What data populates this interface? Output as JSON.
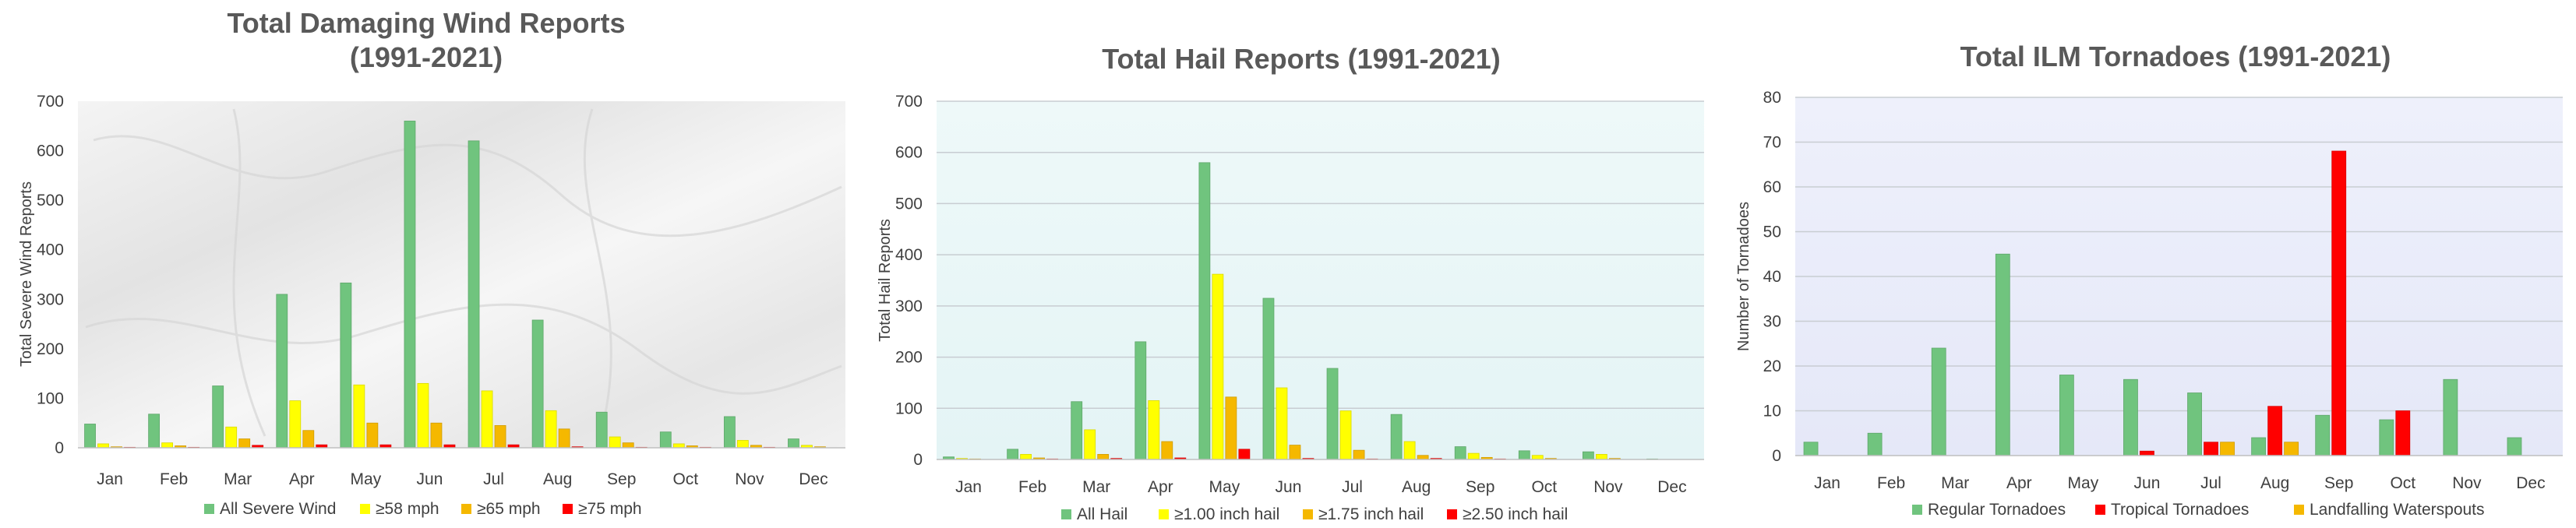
{
  "chart_data": [
    {
      "type": "bar",
      "title": "Total Damaging Wind Reports",
      "subtitle": "(1991-2021)",
      "xlabel": "",
      "ylabel": "Total Severe Wind Reports",
      "ylim": [
        0,
        700
      ],
      "yticks": [
        0,
        100,
        200,
        300,
        400,
        500,
        600,
        700
      ],
      "categories": [
        "Jan",
        "Feb",
        "Mar",
        "Apr",
        "May",
        "Jun",
        "Jul",
        "Aug",
        "Sep",
        "Oct",
        "Nov",
        "Dec"
      ],
      "grid": false,
      "legend_position": "bottom",
      "plot_background": "marble-gray",
      "series": [
        {
          "name": "All Severe Wind",
          "color": "#70c47e",
          "values": [
            48,
            68,
            125,
            310,
            333,
            660,
            620,
            258,
            72,
            32,
            63,
            18
          ]
        },
        {
          "name": "≥58 mph",
          "color": "#ffff00",
          "values": [
            8,
            10,
            42,
            95,
            127,
            130,
            115,
            75,
            22,
            8,
            15,
            5
          ]
        },
        {
          "name": "≥65 mph",
          "color": "#f5b800",
          "values": [
            2,
            4,
            18,
            35,
            50,
            50,
            45,
            38,
            10,
            4,
            5,
            2
          ]
        },
        {
          "name": "≥75 mph",
          "color": "#ff0000",
          "values": [
            1,
            1,
            5,
            6,
            6,
            6,
            6,
            2,
            1,
            1,
            1,
            0
          ]
        }
      ]
    },
    {
      "type": "bar",
      "title": "Total Hail Reports (1991-2021)",
      "xlabel": "",
      "ylabel": "Total Hail Reports",
      "ylim": [
        0,
        700
      ],
      "yticks": [
        0,
        100,
        200,
        300,
        400,
        500,
        600,
        700
      ],
      "categories": [
        "Jan",
        "Feb",
        "Mar",
        "Apr",
        "May",
        "Jun",
        "Jul",
        "Aug",
        "Sep",
        "Oct",
        "Nov",
        "Dec"
      ],
      "grid": true,
      "legend_position": "bottom",
      "plot_background": "pale-aqua",
      "series": [
        {
          "name": "All Hail",
          "color": "#70c47e",
          "values": [
            5,
            20,
            113,
            230,
            580,
            315,
            178,
            88,
            25,
            17,
            15,
            1
          ]
        },
        {
          "name": "≥1.00 inch hail",
          "color": "#ffff00",
          "values": [
            2,
            10,
            58,
            115,
            362,
            140,
            95,
            35,
            12,
            8,
            10,
            0
          ]
        },
        {
          "name": "≥1.75 inch hail",
          "color": "#f5b800",
          "values": [
            1,
            3,
            10,
            35,
            122,
            28,
            18,
            8,
            4,
            2,
            2,
            0
          ]
        },
        {
          "name": "≥2.50 inch hail",
          "color": "#ff0000",
          "values": [
            0,
            1,
            2,
            3,
            20,
            2,
            1,
            2,
            1,
            0,
            0,
            0
          ]
        }
      ]
    },
    {
      "type": "bar",
      "title": "Total ILM Tornadoes (1991-2021)",
      "xlabel": "",
      "ylabel": "Number of Tornadoes",
      "ylim": [
        0,
        80
      ],
      "yticks": [
        0,
        10,
        20,
        30,
        40,
        50,
        60,
        70,
        80
      ],
      "categories": [
        "Jan",
        "Feb",
        "Mar",
        "Apr",
        "May",
        "Jun",
        "Jul",
        "Aug",
        "Sep",
        "Oct",
        "Nov",
        "Dec"
      ],
      "grid": true,
      "legend_position": "bottom",
      "plot_background": "pale-lavender",
      "series": [
        {
          "name": "Regular Tornadoes",
          "color": "#70c47e",
          "values": [
            3,
            5,
            24,
            45,
            18,
            17,
            14,
            4,
            9,
            8,
            17,
            4
          ]
        },
        {
          "name": "Tropical Tornadoes",
          "color": "#ff0000",
          "values": [
            0,
            0,
            0,
            0,
            0,
            1,
            3,
            11,
            68,
            10,
            0,
            0
          ]
        },
        {
          "name": "Landfalling Waterspouts",
          "color": "#f5b800",
          "values": [
            0,
            0,
            0,
            0,
            0,
            0,
            3,
            3,
            0,
            0,
            0,
            0
          ]
        }
      ]
    }
  ]
}
